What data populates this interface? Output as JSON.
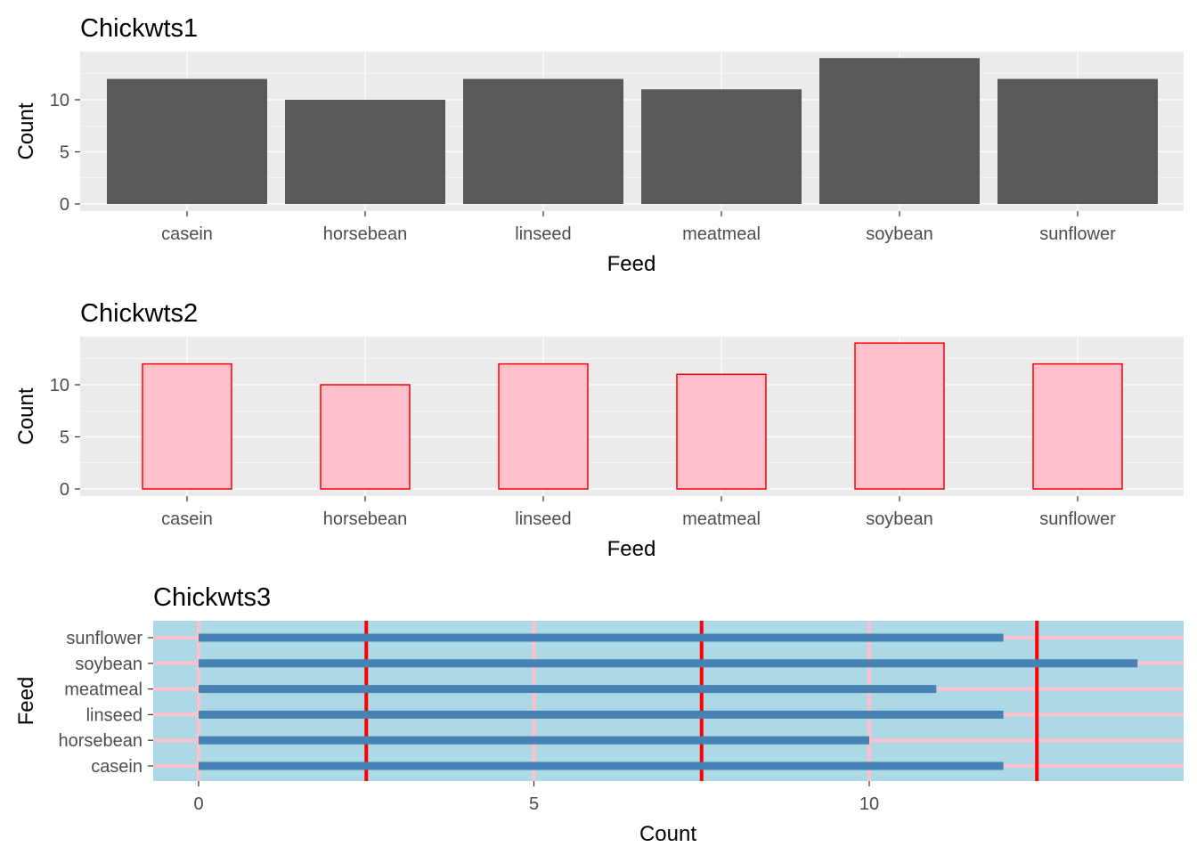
{
  "chart_data": [
    {
      "type": "bar",
      "title": "Chickwts1",
      "xlabel": "Feed",
      "ylabel": "Count",
      "categories": [
        "casein",
        "horsebean",
        "linseed",
        "meatmeal",
        "soybean",
        "sunflower"
      ],
      "values": [
        12,
        10,
        12,
        11,
        14,
        12
      ],
      "yticks": [
        0,
        5,
        10
      ],
      "ylim": [
        0,
        14
      ],
      "grid": true,
      "colors": {
        "fill": "#595959",
        "panel": "#ebebeb",
        "grid": "#ffffff"
      }
    },
    {
      "type": "bar",
      "title": "Chickwts2",
      "xlabel": "Feed",
      "ylabel": "Count",
      "categories": [
        "casein",
        "horsebean",
        "linseed",
        "meatmeal",
        "soybean",
        "sunflower"
      ],
      "values": [
        12,
        10,
        12,
        11,
        14,
        12
      ],
      "yticks": [
        0,
        5,
        10
      ],
      "ylim": [
        0,
        14
      ],
      "grid": true,
      "colors": {
        "fill": "#ffc0cb",
        "stroke": "#ff0000",
        "panel": "#ebebeb",
        "grid": "#ffffff"
      }
    },
    {
      "type": "bar",
      "orientation": "horizontal",
      "title": "Chickwts3",
      "xlabel": "Count",
      "ylabel": "Feed",
      "categories": [
        "casein",
        "horsebean",
        "linseed",
        "meatmeal",
        "soybean",
        "sunflower"
      ],
      "values": [
        12,
        10,
        12,
        11,
        14,
        12
      ],
      "xticks": [
        0,
        5,
        10
      ],
      "xlim": [
        0,
        14
      ],
      "grid": true,
      "colors": {
        "fill": "#4682b4",
        "panel": "#add8e6",
        "major_grid": "#ffc0cb",
        "minor_grid": "#ff0000"
      }
    }
  ]
}
